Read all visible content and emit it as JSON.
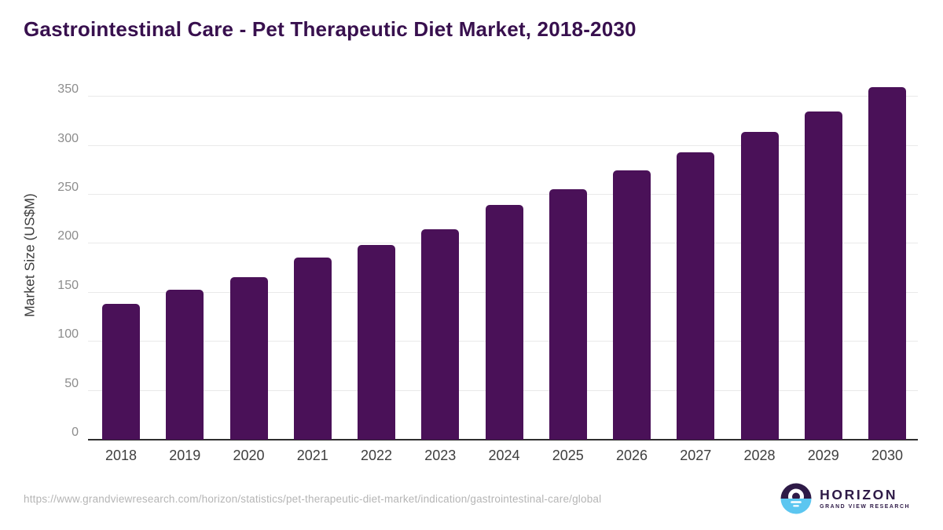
{
  "title": "Gastrointestinal Care - Pet Therapeutic Diet Market, 2018-2030",
  "footer": {
    "source_url": "https://www.grandviewresearch.com/horizon/statistics/pet-therapeutic-diet-market/indication/gastrointestinal-care/global"
  },
  "logo": {
    "name": "HORIZON",
    "subtitle": "GRAND VIEW RESEARCH",
    "icon": "horizon-sunset-circle-icon"
  },
  "colors": {
    "bar": "#4a1158",
    "title": "#38104e",
    "grid": "#e9e9e9",
    "tick_label": "#8c8c8c",
    "axis_label": "#3e3e3e",
    "axis_line": "#2e2e2e",
    "url": "#b5b5b5",
    "logo_purple": "#2e1a47",
    "logo_blue": "#5cc6f0"
  },
  "chart_data": {
    "type": "bar",
    "title": "Gastrointestinal Care - Pet Therapeutic Diet Market, 2018-2030",
    "categories": [
      "2018",
      "2019",
      "2020",
      "2021",
      "2022",
      "2023",
      "2024",
      "2025",
      "2026",
      "2027",
      "2028",
      "2029",
      "2030"
    ],
    "values": [
      139,
      153,
      166,
      186,
      199,
      215,
      240,
      256,
      275,
      293,
      314,
      335,
      360
    ],
    "xlabel": "",
    "ylabel": "Market Size (US$M)",
    "ylim": [
      0,
      372
    ],
    "y_ticks": [
      0,
      50,
      100,
      150,
      200,
      250,
      300,
      350
    ],
    "grid": "horizontal",
    "legend": "none",
    "bar_color": "#4a1158"
  }
}
